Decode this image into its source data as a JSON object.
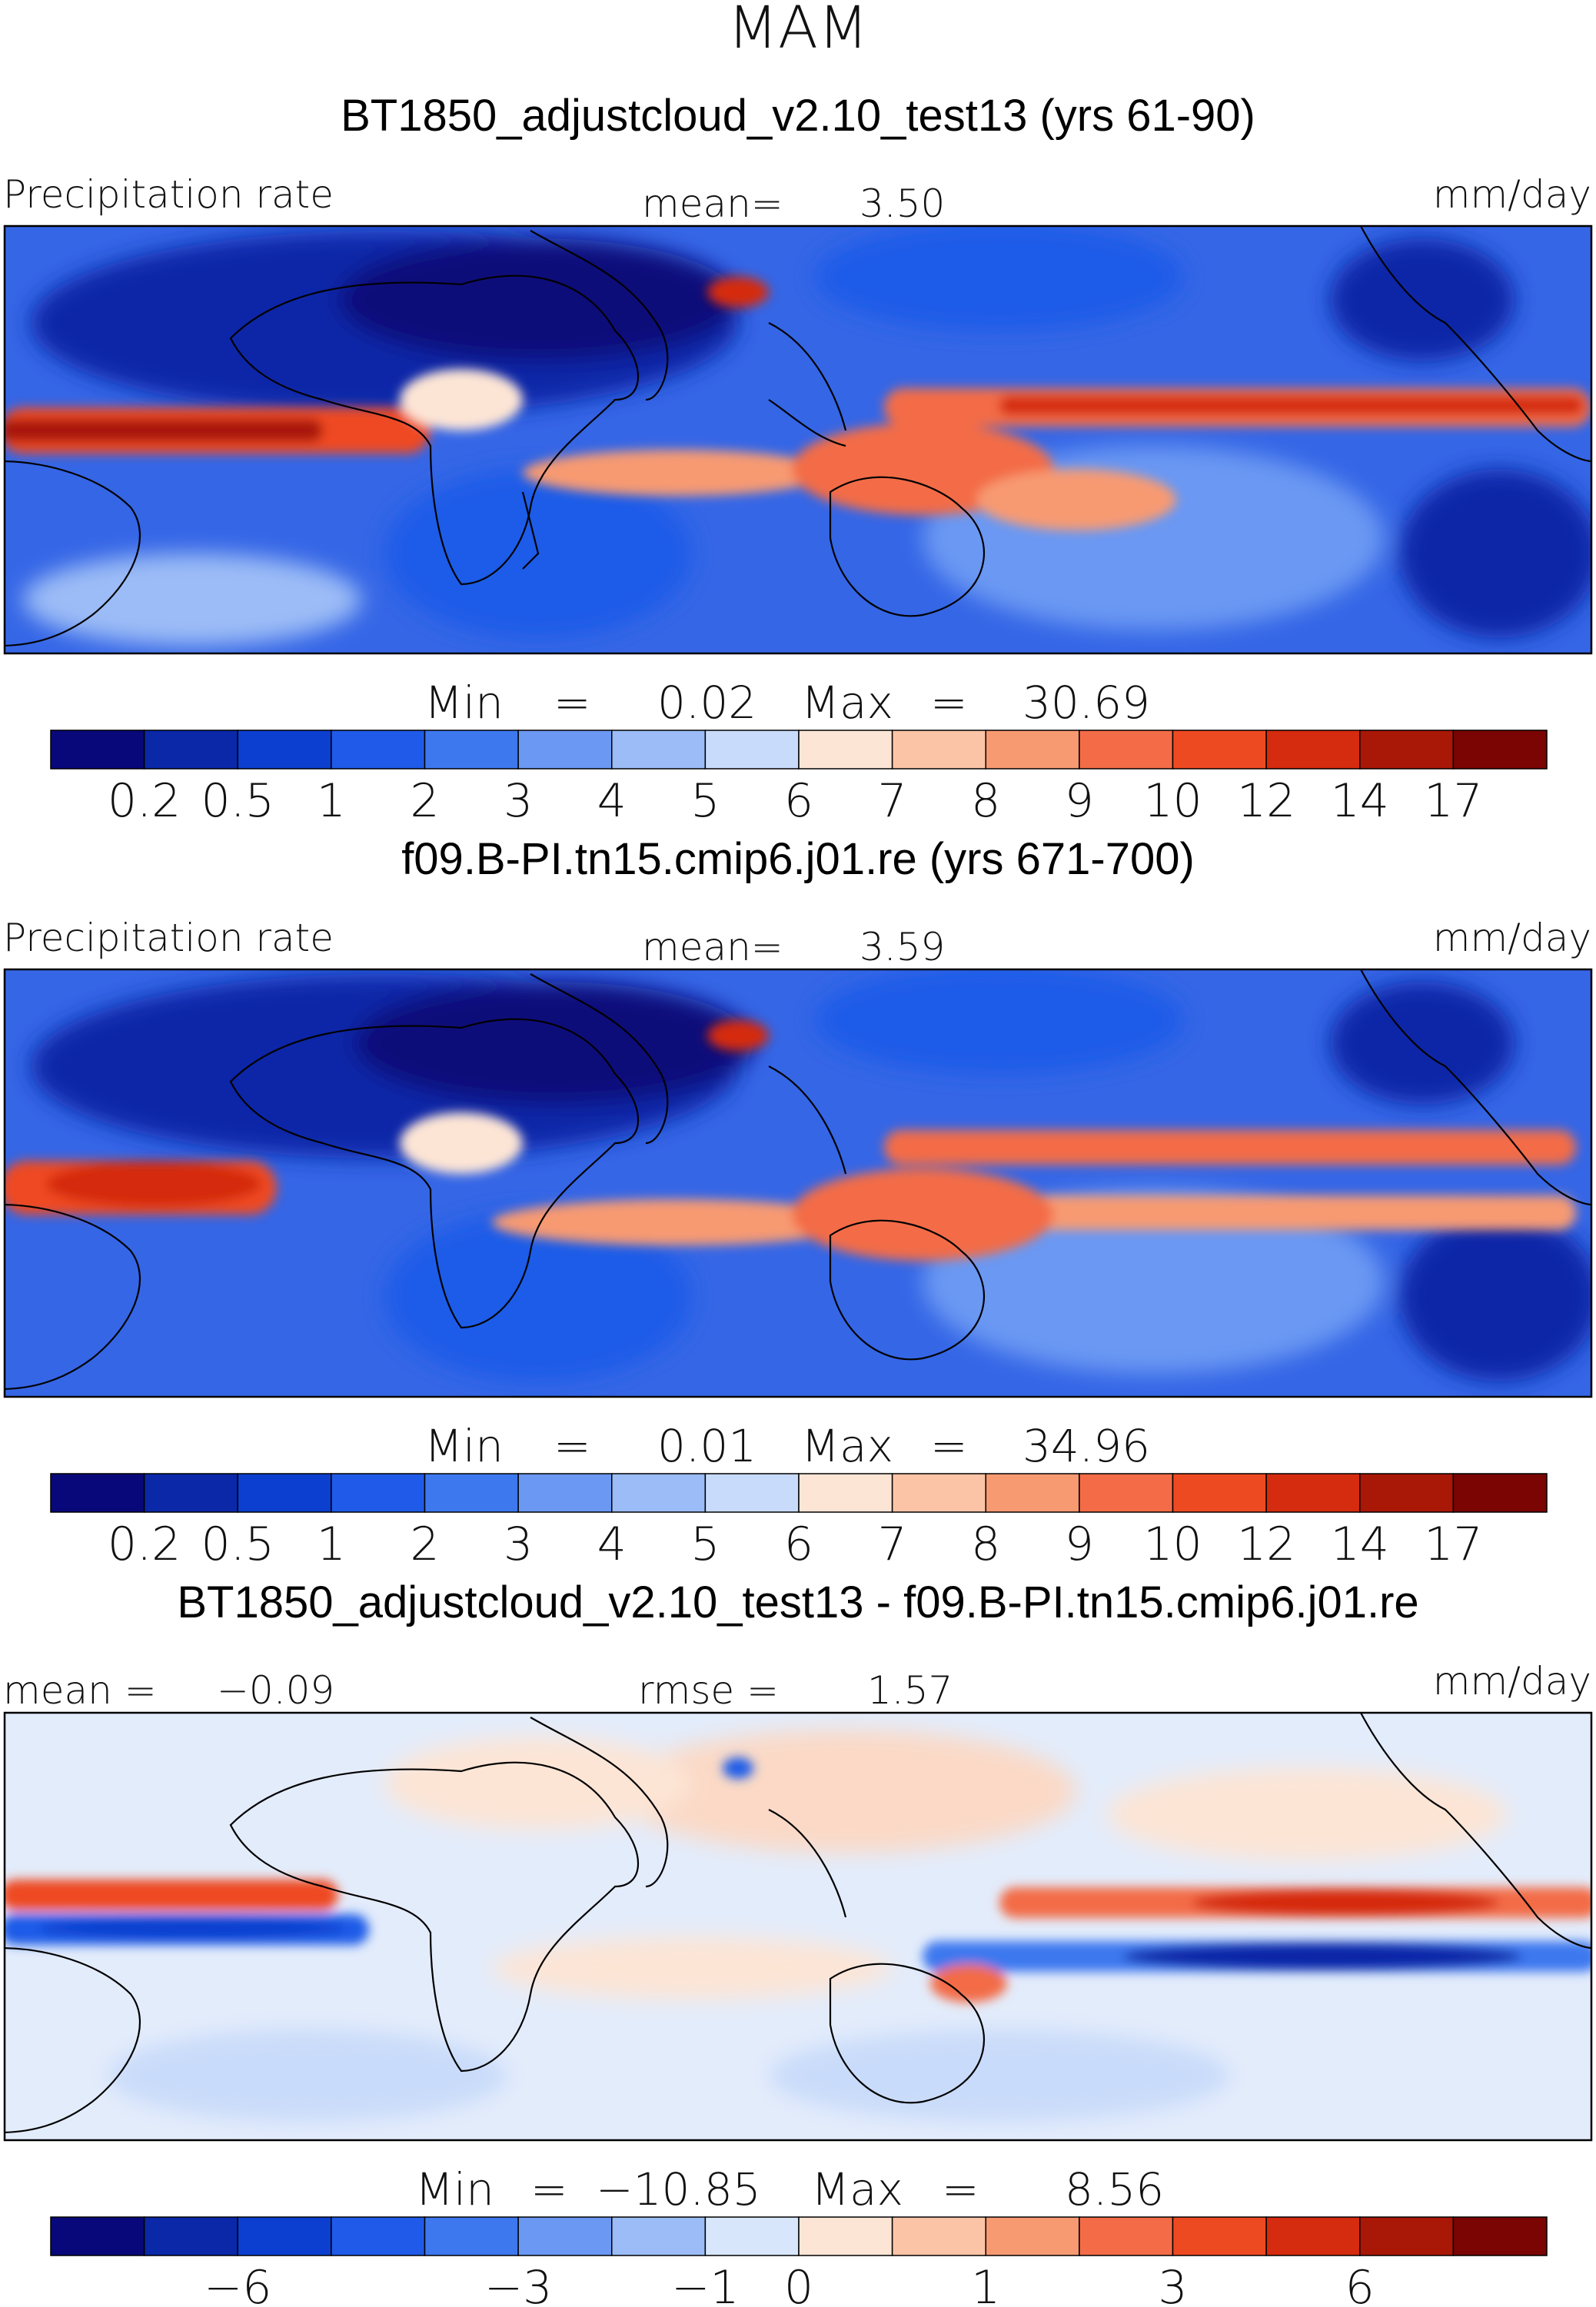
{
  "page": {
    "season": "MAM"
  },
  "colors": {
    "precip_scale": [
      "#08087a",
      "#0a28a8",
      "#0c3fcf",
      "#1f5be8",
      "#3e78ef",
      "#6b98f3",
      "#9bbcf6",
      "#c9dbfa",
      "#fde5d5",
      "#fbc4a6",
      "#f79a72",
      "#f36c47",
      "#ee4a22",
      "#d52b0e",
      "#a91707",
      "#7a0503"
    ],
    "diff_scale": [
      "#08087a",
      "#0a28a8",
      "#0c3fcf",
      "#1f5be8",
      "#3e78ef",
      "#6b98f3",
      "#9bbcf6",
      "#d8e6fb",
      "#fde5d5",
      "#fbc4a6",
      "#f79a72",
      "#f36c47",
      "#ee4a22",
      "#d52b0e",
      "#a91707",
      "#7a0503"
    ],
    "coast": "#000000",
    "frame": "#000000"
  },
  "chart_data": [
    {
      "type": "heatmap",
      "title": "BT1850_adjustcloud_v2.10_test13 (yrs 61-90)",
      "left_label": "Precipitation rate",
      "mean_label": "mean=",
      "mean_value": "3.50",
      "units": "mm/day",
      "min_label": "Min",
      "min_value": "0.02",
      "max_label": "Max",
      "max_value": "30.69",
      "colorbar_ticks": [
        "0.2",
        "0.5",
        "1",
        "2",
        "3",
        "4",
        "5",
        "6",
        "7",
        "8",
        "9",
        "10",
        "12",
        "14",
        "17"
      ]
    },
    {
      "type": "heatmap",
      "title": "f09.B-PI.tn15.cmip6.j01.re (yrs 671-700)",
      "left_label": "Precipitation rate",
      "mean_label": "mean=",
      "mean_value": "3.59",
      "units": "mm/day",
      "min_label": "Min",
      "min_value": "0.01",
      "max_label": "Max",
      "max_value": "34.96",
      "colorbar_ticks": [
        "0.2",
        "0.5",
        "1",
        "2",
        "3",
        "4",
        "5",
        "6",
        "7",
        "8",
        "9",
        "10",
        "12",
        "14",
        "17"
      ]
    },
    {
      "type": "heatmap",
      "title": "BT1850_adjustcloud_v2.10_test13 - f09.B-PI.tn15.cmip6.j01.re",
      "left_label": "mean =",
      "mean_value": "−0.09",
      "rmse_label": "rmse =",
      "rmse_value": "1.57",
      "units": "mm/day",
      "min_label": "Min",
      "min_value": "−10.85",
      "max_label": "Max",
      "max_value": "8.56",
      "colorbar_ticks": [
        "−6",
        "−3",
        "−1",
        "0",
        "1",
        "3",
        "6"
      ]
    }
  ]
}
